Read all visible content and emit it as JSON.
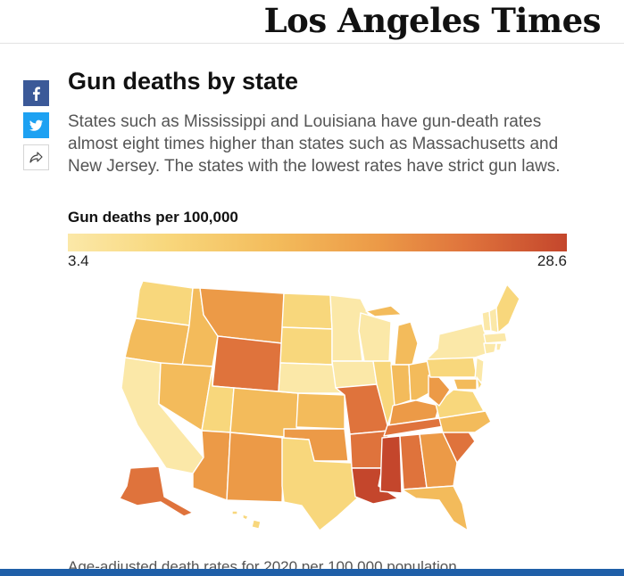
{
  "masthead": {
    "logo_text": "Los Angeles Times"
  },
  "share": {
    "facebook_icon": "facebook-icon",
    "twitter_icon": "twitter-icon",
    "forward_icon": "share-arrow-icon"
  },
  "article": {
    "title": "Gun deaths by state",
    "dek": "States such as Mississippi and Louisiana have gun-death rates almost eight times higher than states such as Massachusetts and New Jersey. The states with the lowest rates have strict gun laws."
  },
  "legend": {
    "title": "Gun deaths per 100,000",
    "min_label": "3.4",
    "max_label": "28.6",
    "color_low": "#fbe8a8",
    "color_high": "#c4462c"
  },
  "map_data": {
    "type": "choropleth",
    "region": "United States",
    "value_range": [
      3.4,
      28.6
    ],
    "palette": {
      "lightest": "#fbe8a8",
      "light": "#f8d77c",
      "mid": "#f3bb5b",
      "mid_dark": "#ec9a47",
      "dark": "#df733c",
      "darkest": "#c4462c"
    }
  },
  "footnote": "Age-adjusted death rates for 2020 per 100,000 population"
}
